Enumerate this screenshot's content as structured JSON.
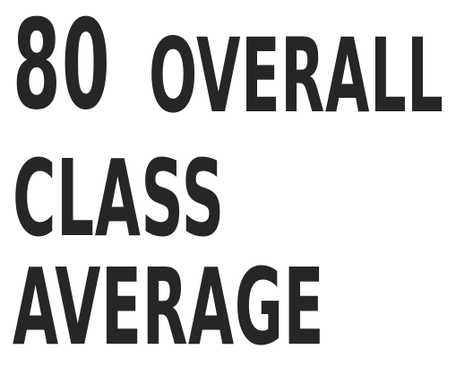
{
  "stat": {
    "value": "80",
    "label_line1": "OVERALL",
    "label_line2": "CLASS",
    "label_line3": "AVERAGE"
  },
  "colors": {
    "text": "#262626",
    "background": "#ffffff"
  }
}
